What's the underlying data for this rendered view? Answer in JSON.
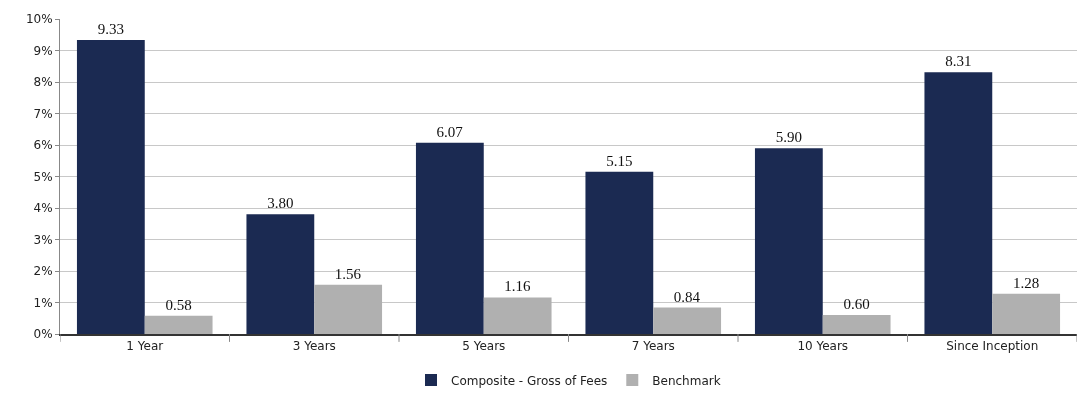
{
  "chart_data": {
    "type": "bar",
    "categories": [
      "1 Year",
      "3 Years",
      "5 Years",
      "7 Years",
      "10 Years",
      "Since Inception"
    ],
    "series": [
      {
        "name": "Composite - Gross of Fees",
        "color": "#1b2a52",
        "values": [
          9.33,
          3.8,
          6.07,
          5.15,
          5.9,
          8.31
        ],
        "value_labels": [
          "9.33",
          "3.80",
          "6.07",
          "5.15",
          "5.90",
          "8.31"
        ]
      },
      {
        "name": "Benchmark",
        "color": "#b0b0b0",
        "values": [
          0.58,
          1.56,
          1.16,
          0.84,
          0.6,
          1.28
        ],
        "value_labels": [
          "0.58",
          "1.56",
          "1.16",
          "0.84",
          "0.60",
          "1.28"
        ]
      }
    ],
    "ylim": [
      0,
      10
    ],
    "yticks": [
      {
        "value": 0,
        "label": "0%"
      },
      {
        "value": 1,
        "label": "1%"
      },
      {
        "value": 2,
        "label": "2%"
      },
      {
        "value": 3,
        "label": "3%"
      },
      {
        "value": 4,
        "label": "4%"
      },
      {
        "value": 5,
        "label": "5%"
      },
      {
        "value": 6,
        "label": "6%"
      },
      {
        "value": 7,
        "label": "7%"
      },
      {
        "value": 8,
        "label": "8%"
      },
      {
        "value": 9,
        "label": "9%"
      },
      {
        "value": 10,
        "label": "10%"
      }
    ],
    "grid": "y",
    "legend": "bottom"
  }
}
